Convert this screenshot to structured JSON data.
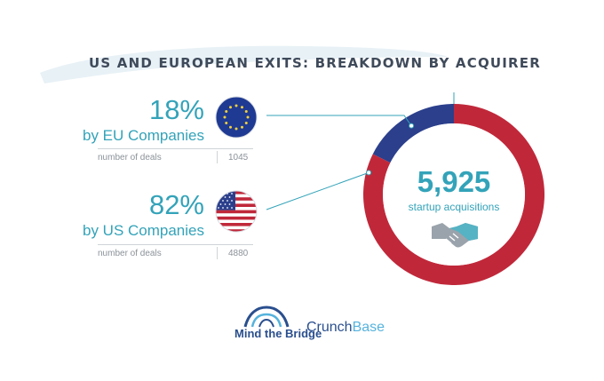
{
  "title": "US AND EUROPEAN EXITS: BREAKDOWN BY ACQUIRER",
  "eu": {
    "percent": "18%",
    "subtitle": "by EU Companies",
    "deals_label": "number of deals",
    "deals_value": "1045",
    "flag_icon": "eu-flag-icon"
  },
  "us": {
    "percent": "82%",
    "subtitle": "by US Companies",
    "deals_label": "number of deals",
    "deals_value": "4880",
    "flag_icon": "us-flag-icon"
  },
  "center": {
    "total": "5,925",
    "caption": "startup acquisitions",
    "icon": "handshake-icon"
  },
  "logos": {
    "mind_the_bridge": "Mind the Bridge",
    "crunchbase_a": "Crunch",
    "crunchbase_b": "Base"
  },
  "colors": {
    "eu": "#2b3f8c",
    "us": "#c0283a",
    "accent": "#33a3b9"
  },
  "chart_data": {
    "type": "pie",
    "donut": true,
    "title": "US AND EUROPEAN EXITS: BREAKDOWN BY ACQUIRER",
    "categories": [
      "by EU Companies",
      "by US Companies"
    ],
    "values": [
      1045,
      4880
    ],
    "percentages": [
      18,
      82
    ],
    "total": 5925,
    "colors": [
      "#2b3f8c",
      "#c0283a"
    ],
    "legend": "left"
  }
}
